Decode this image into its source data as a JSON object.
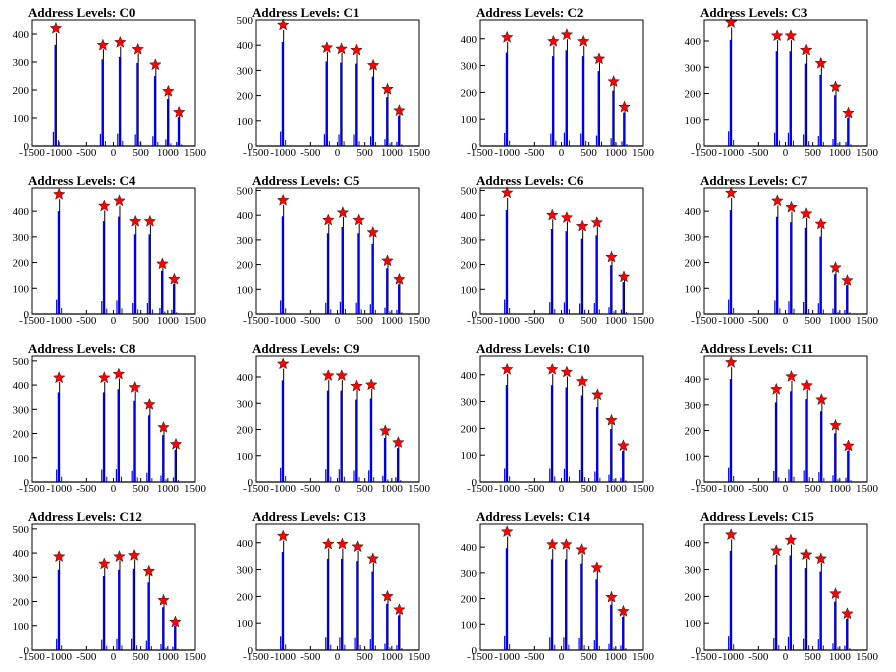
{
  "colors": {
    "peak_line": "#000000",
    "histogram": "#0000ff",
    "marker": "#ff0000",
    "marker_outline": "#000000",
    "frame": "#000000",
    "background": "#ffffff"
  },
  "chart_data": [
    {
      "type": "bar",
      "title": "Address Levels: C0",
      "xlim": [
        -1500,
        1500
      ],
      "ylim": [
        0,
        450
      ],
      "yticks": [
        0,
        100,
        200,
        300,
        400
      ],
      "xtick_labels": [
        "-1500",
        "-1000",
        "-500",
        "0",
        "500",
        "1000",
        "1500"
      ],
      "peaks": [
        {
          "x": -1060,
          "y": 420
        },
        {
          "x": -195,
          "y": 360
        },
        {
          "x": 125,
          "y": 370
        },
        {
          "x": 445,
          "y": 345
        },
        {
          "x": 770,
          "y": 290
        },
        {
          "x": 1010,
          "y": 195
        },
        {
          "x": 1210,
          "y": 120
        }
      ]
    },
    {
      "type": "bar",
      "title": "Address Levels: C1",
      "xlim": [
        -1500,
        1500
      ],
      "ylim": [
        0,
        500
      ],
      "yticks": [
        0,
        100,
        200,
        300,
        400,
        500
      ],
      "xtick_labels": [
        "-1500",
        "-1000",
        "-500",
        "0",
        "500",
        "1000",
        "1500"
      ],
      "peaks": [
        {
          "x": -1000,
          "y": 480
        },
        {
          "x": -195,
          "y": 390
        },
        {
          "x": 75,
          "y": 385
        },
        {
          "x": 350,
          "y": 380
        },
        {
          "x": 655,
          "y": 320
        },
        {
          "x": 920,
          "y": 225
        },
        {
          "x": 1140,
          "y": 140
        }
      ]
    },
    {
      "type": "bar",
      "title": "Address Levels: C2",
      "xlim": [
        -1500,
        1500
      ],
      "ylim": [
        0,
        470
      ],
      "yticks": [
        0,
        100,
        200,
        300,
        400
      ],
      "xtick_labels": [
        "-1500",
        "-1000",
        "-500",
        "0",
        "500",
        "1000",
        "1500"
      ],
      "peaks": [
        {
          "x": -1000,
          "y": 405
        },
        {
          "x": -150,
          "y": 390
        },
        {
          "x": 100,
          "y": 415
        },
        {
          "x": 400,
          "y": 390
        },
        {
          "x": 690,
          "y": 325
        },
        {
          "x": 960,
          "y": 240
        },
        {
          "x": 1160,
          "y": 145
        }
      ]
    },
    {
      "type": "bar",
      "title": "Address Levels: C3",
      "xlim": [
        -1500,
        1500
      ],
      "ylim": [
        0,
        480
      ],
      "yticks": [
        0,
        100,
        200,
        300,
        400
      ],
      "xtick_labels": [
        "-1500",
        "-1000",
        "-500",
        "0",
        "500",
        "1000",
        "1500"
      ],
      "peaks": [
        {
          "x": -1000,
          "y": 470
        },
        {
          "x": -155,
          "y": 420
        },
        {
          "x": 100,
          "y": 420
        },
        {
          "x": 380,
          "y": 365
        },
        {
          "x": 650,
          "y": 315
        },
        {
          "x": 920,
          "y": 225
        },
        {
          "x": 1160,
          "y": 125
        }
      ]
    },
    {
      "type": "bar",
      "title": "Address Levels: C4",
      "xlim": [
        -1500,
        1500
      ],
      "ylim": [
        0,
        490
      ],
      "yticks": [
        0,
        100,
        200,
        300,
        400
      ],
      "xtick_labels": [
        "-1500",
        "-1000",
        "-500",
        "0",
        "500",
        "1000",
        "1500"
      ],
      "peaks": [
        {
          "x": -1000,
          "y": 465
        },
        {
          "x": -170,
          "y": 420
        },
        {
          "x": 110,
          "y": 440
        },
        {
          "x": 400,
          "y": 360
        },
        {
          "x": 670,
          "y": 360
        },
        {
          "x": 900,
          "y": 195
        },
        {
          "x": 1120,
          "y": 135
        }
      ]
    },
    {
      "type": "bar",
      "title": "Address Levels: C5",
      "xlim": [
        -1500,
        1500
      ],
      "ylim": [
        0,
        510
      ],
      "yticks": [
        0,
        100,
        200,
        300,
        400,
        500
      ],
      "xtick_labels": [
        "-1500",
        "-1000",
        "-500",
        "0",
        "500",
        "1000",
        "1500"
      ],
      "peaks": [
        {
          "x": -1000,
          "y": 460
        },
        {
          "x": -170,
          "y": 380
        },
        {
          "x": 100,
          "y": 410
        },
        {
          "x": 390,
          "y": 380
        },
        {
          "x": 650,
          "y": 330
        },
        {
          "x": 920,
          "y": 215
        },
        {
          "x": 1140,
          "y": 140
        }
      ]
    },
    {
      "type": "bar",
      "title": "Address Levels: C6",
      "xlim": [
        -1500,
        1500
      ],
      "ylim": [
        0,
        510
      ],
      "yticks": [
        0,
        100,
        200,
        300,
        400,
        500
      ],
      "xtick_labels": [
        "-1500",
        "-1000",
        "-500",
        "0",
        "500",
        "1000",
        "1500"
      ],
      "peaks": [
        {
          "x": -1000,
          "y": 490
        },
        {
          "x": -170,
          "y": 400
        },
        {
          "x": 100,
          "y": 390
        },
        {
          "x": 380,
          "y": 355
        },
        {
          "x": 650,
          "y": 370
        },
        {
          "x": 920,
          "y": 230
        },
        {
          "x": 1150,
          "y": 150
        }
      ]
    },
    {
      "type": "bar",
      "title": "Address Levels: C7",
      "xlim": [
        -1500,
        1500
      ],
      "ylim": [
        0,
        490
      ],
      "yticks": [
        0,
        100,
        200,
        300,
        400
      ],
      "xtick_labels": [
        "-1500",
        "-1000",
        "-500",
        "0",
        "500",
        "1000",
        "1500"
      ],
      "peaks": [
        {
          "x": -1000,
          "y": 470
        },
        {
          "x": -150,
          "y": 440
        },
        {
          "x": 110,
          "y": 415
        },
        {
          "x": 380,
          "y": 390
        },
        {
          "x": 650,
          "y": 350
        },
        {
          "x": 920,
          "y": 180
        },
        {
          "x": 1140,
          "y": 130
        }
      ]
    },
    {
      "type": "bar",
      "title": "Address Levels: C8",
      "xlim": [
        -1500,
        1500
      ],
      "ylim": [
        0,
        520
      ],
      "yticks": [
        0,
        100,
        200,
        300,
        400,
        500
      ],
      "xtick_labels": [
        "-1500",
        "-1000",
        "-500",
        "0",
        "500",
        "1000",
        "1500"
      ],
      "peaks": [
        {
          "x": -1000,
          "y": 430
        },
        {
          "x": -170,
          "y": 430
        },
        {
          "x": 100,
          "y": 445
        },
        {
          "x": 390,
          "y": 390
        },
        {
          "x": 660,
          "y": 320
        },
        {
          "x": 920,
          "y": 225
        },
        {
          "x": 1150,
          "y": 155
        }
      ]
    },
    {
      "type": "bar",
      "title": "Address Levels: C9",
      "xlim": [
        -1500,
        1500
      ],
      "ylim": [
        0,
        480
      ],
      "yticks": [
        0,
        100,
        200,
        300,
        400
      ],
      "xtick_labels": [
        "-1500",
        "-1000",
        "-500",
        "0",
        "500",
        "1000",
        "1500"
      ],
      "peaks": [
        {
          "x": -1000,
          "y": 450
        },
        {
          "x": -170,
          "y": 405
        },
        {
          "x": 80,
          "y": 405
        },
        {
          "x": 350,
          "y": 365
        },
        {
          "x": 620,
          "y": 370
        },
        {
          "x": 880,
          "y": 195
        },
        {
          "x": 1120,
          "y": 150
        }
      ]
    },
    {
      "type": "bar",
      "title": "Address Levels: C10",
      "xlim": [
        -1500,
        1500
      ],
      "ylim": [
        0,
        470
      ],
      "yticks": [
        0,
        100,
        200,
        300,
        400
      ],
      "xtick_labels": [
        "-1500",
        "-1000",
        "-500",
        "0",
        "500",
        "1000",
        "1500"
      ],
      "peaks": [
        {
          "x": -1000,
          "y": 420
        },
        {
          "x": -170,
          "y": 420
        },
        {
          "x": 100,
          "y": 410
        },
        {
          "x": 380,
          "y": 375
        },
        {
          "x": 660,
          "y": 325
        },
        {
          "x": 920,
          "y": 230
        },
        {
          "x": 1140,
          "y": 135
        }
      ]
    },
    {
      "type": "bar",
      "title": "Address Levels: C11",
      "xlim": [
        -1500,
        1500
      ],
      "ylim": [
        0,
        490
      ],
      "yticks": [
        0,
        100,
        200,
        300,
        400
      ],
      "xtick_labels": [
        "-1500",
        "-1000",
        "-500",
        "0",
        "500",
        "1000",
        "1500"
      ],
      "peaks": [
        {
          "x": -1000,
          "y": 465
        },
        {
          "x": -170,
          "y": 360
        },
        {
          "x": 110,
          "y": 410
        },
        {
          "x": 390,
          "y": 375
        },
        {
          "x": 660,
          "y": 320
        },
        {
          "x": 920,
          "y": 220
        },
        {
          "x": 1160,
          "y": 140
        }
      ]
    },
    {
      "type": "bar",
      "title": "Address Levels: C12",
      "xlim": [
        -1500,
        1500
      ],
      "ylim": [
        0,
        520
      ],
      "yticks": [
        0,
        100,
        200,
        300,
        400,
        500
      ],
      "xtick_labels": [
        "-1500",
        "-1000",
        "-500",
        "0",
        "500",
        "1000",
        "1500"
      ],
      "peaks": [
        {
          "x": -1000,
          "y": 385
        },
        {
          "x": -170,
          "y": 355
        },
        {
          "x": 110,
          "y": 385
        },
        {
          "x": 380,
          "y": 390
        },
        {
          "x": 650,
          "y": 325
        },
        {
          "x": 920,
          "y": 205
        },
        {
          "x": 1140,
          "y": 115
        }
      ]
    },
    {
      "type": "bar",
      "title": "Address Levels: C13",
      "xlim": [
        -1500,
        1500
      ],
      "ylim": [
        0,
        470
      ],
      "yticks": [
        0,
        100,
        200,
        300,
        400
      ],
      "xtick_labels": [
        "-1500",
        "-1000",
        "-500",
        "0",
        "500",
        "1000",
        "1500"
      ],
      "peaks": [
        {
          "x": -1000,
          "y": 425
        },
        {
          "x": -170,
          "y": 395
        },
        {
          "x": 90,
          "y": 395
        },
        {
          "x": 370,
          "y": 385
        },
        {
          "x": 650,
          "y": 340
        },
        {
          "x": 920,
          "y": 200
        },
        {
          "x": 1140,
          "y": 150
        }
      ]
    },
    {
      "type": "bar",
      "title": "Address Levels: C14",
      "xlim": [
        -1500,
        1500
      ],
      "ylim": [
        0,
        490
      ],
      "yticks": [
        0,
        100,
        200,
        300,
        400
      ],
      "xtick_labels": [
        "-1500",
        "-1000",
        "-500",
        "0",
        "500",
        "1000",
        "1500"
      ],
      "peaks": [
        {
          "x": -1000,
          "y": 460
        },
        {
          "x": -170,
          "y": 410
        },
        {
          "x": 90,
          "y": 410
        },
        {
          "x": 370,
          "y": 390
        },
        {
          "x": 650,
          "y": 320
        },
        {
          "x": 920,
          "y": 205
        },
        {
          "x": 1140,
          "y": 150
        }
      ]
    },
    {
      "type": "bar",
      "title": "Address Levels: C15",
      "xlim": [
        -1500,
        1500
      ],
      "ylim": [
        0,
        470
      ],
      "yticks": [
        0,
        100,
        200,
        300,
        400
      ],
      "xtick_labels": [
        "-1500",
        "-1000",
        "-500",
        "0",
        "500",
        "1000",
        "1500"
      ],
      "peaks": [
        {
          "x": -1000,
          "y": 430
        },
        {
          "x": -170,
          "y": 370
        },
        {
          "x": 100,
          "y": 410
        },
        {
          "x": 380,
          "y": 355
        },
        {
          "x": 650,
          "y": 340
        },
        {
          "x": 920,
          "y": 210
        },
        {
          "x": 1140,
          "y": 135
        }
      ]
    }
  ]
}
